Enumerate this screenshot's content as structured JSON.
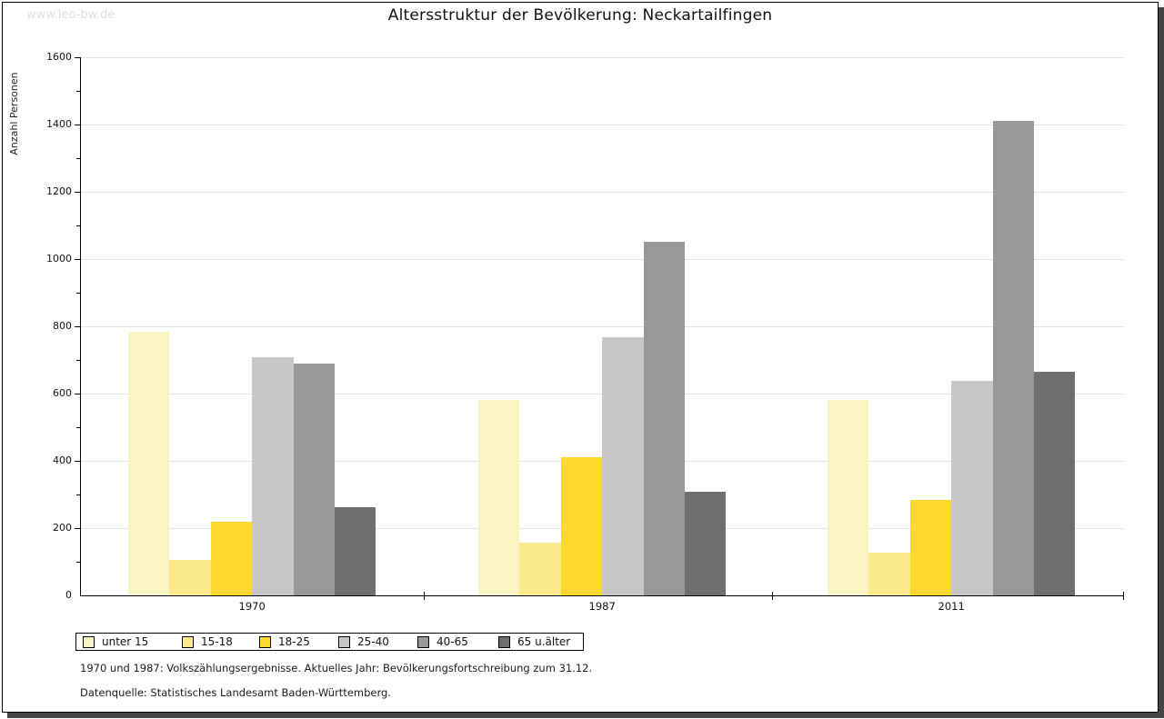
{
  "watermark": "www.leo-bw.de",
  "header": {
    "title": "Altersstruktur der Bevölkerung: Neckartailfingen"
  },
  "footnotes": {
    "line1": "1970 und 1987: Volkszählungsergebnisse. Aktuelles Jahr: Bevölkerungsfortschreibung zum 31.12.",
    "line2": "Datenquelle: Statistisches Landesamt Baden-Württemberg."
  },
  "chart_data": {
    "type": "bar",
    "title": "Altersstruktur der Bevölkerung: Neckartailfingen",
    "xlabel": "",
    "ylabel": "Anzahl Personen",
    "categories": [
      "1970",
      "1987",
      "2011"
    ],
    "series": [
      {
        "name": "unter 15",
        "color": "#FAF3C3",
        "values": [
          783,
          580,
          580
        ]
      },
      {
        "name": "15-18",
        "color": "#FCE98C",
        "values": [
          106,
          156,
          128
        ]
      },
      {
        "name": "18-25",
        "color": "#FDD82F",
        "values": [
          219,
          411,
          284
        ]
      },
      {
        "name": "25-40",
        "color": "#C7C7C7",
        "values": [
          707,
          767,
          638
        ]
      },
      {
        "name": "40-65",
        "color": "#989898",
        "values": [
          690,
          1051,
          1410
        ]
      },
      {
        "name": "65 u.älter",
        "color": "#6F6F6F",
        "values": [
          262,
          308,
          664
        ]
      }
    ],
    "ylim": [
      0,
      1600
    ],
    "ytick_step": 200,
    "yminor_step": 100,
    "grid": true,
    "grid_color": "#E3E3E3",
    "legend_position": "bottom-left"
  }
}
